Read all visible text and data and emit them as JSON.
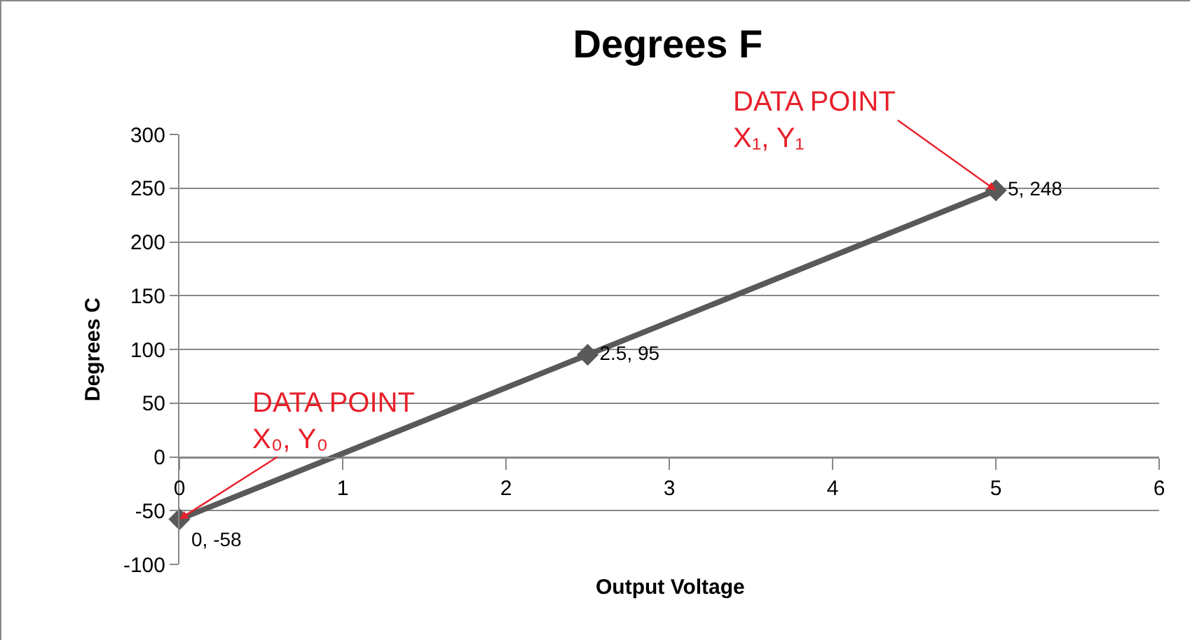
{
  "chart_data": {
    "type": "line",
    "title": "Degrees F",
    "xlabel": "Output Voltage",
    "ylabel": "Degrees C",
    "x": [
      0,
      2.5,
      5
    ],
    "series": [
      {
        "color": "#595959",
        "values": [
          -58,
          95,
          248
        ],
        "value_labels": [
          "0, -58",
          "2.5, 95",
          "5, 248"
        ]
      }
    ],
    "xlim": [
      0,
      6
    ],
    "xticks": [
      0,
      1,
      2,
      3,
      4,
      5,
      6
    ],
    "ylim": [
      -100,
      300
    ],
    "yticks": [
      -100,
      -50,
      0,
      50,
      100,
      150,
      200,
      250,
      300
    ],
    "grid": "y",
    "marker": "diamond",
    "line_style": "solid",
    "annotations": [
      {
        "text": "DATA POINT\nX₁, Y₁",
        "x": 5,
        "y": 248
      },
      {
        "text": "DATA POINT\nX₀, Y₀",
        "x": 0,
        "y": -58
      }
    ]
  }
}
